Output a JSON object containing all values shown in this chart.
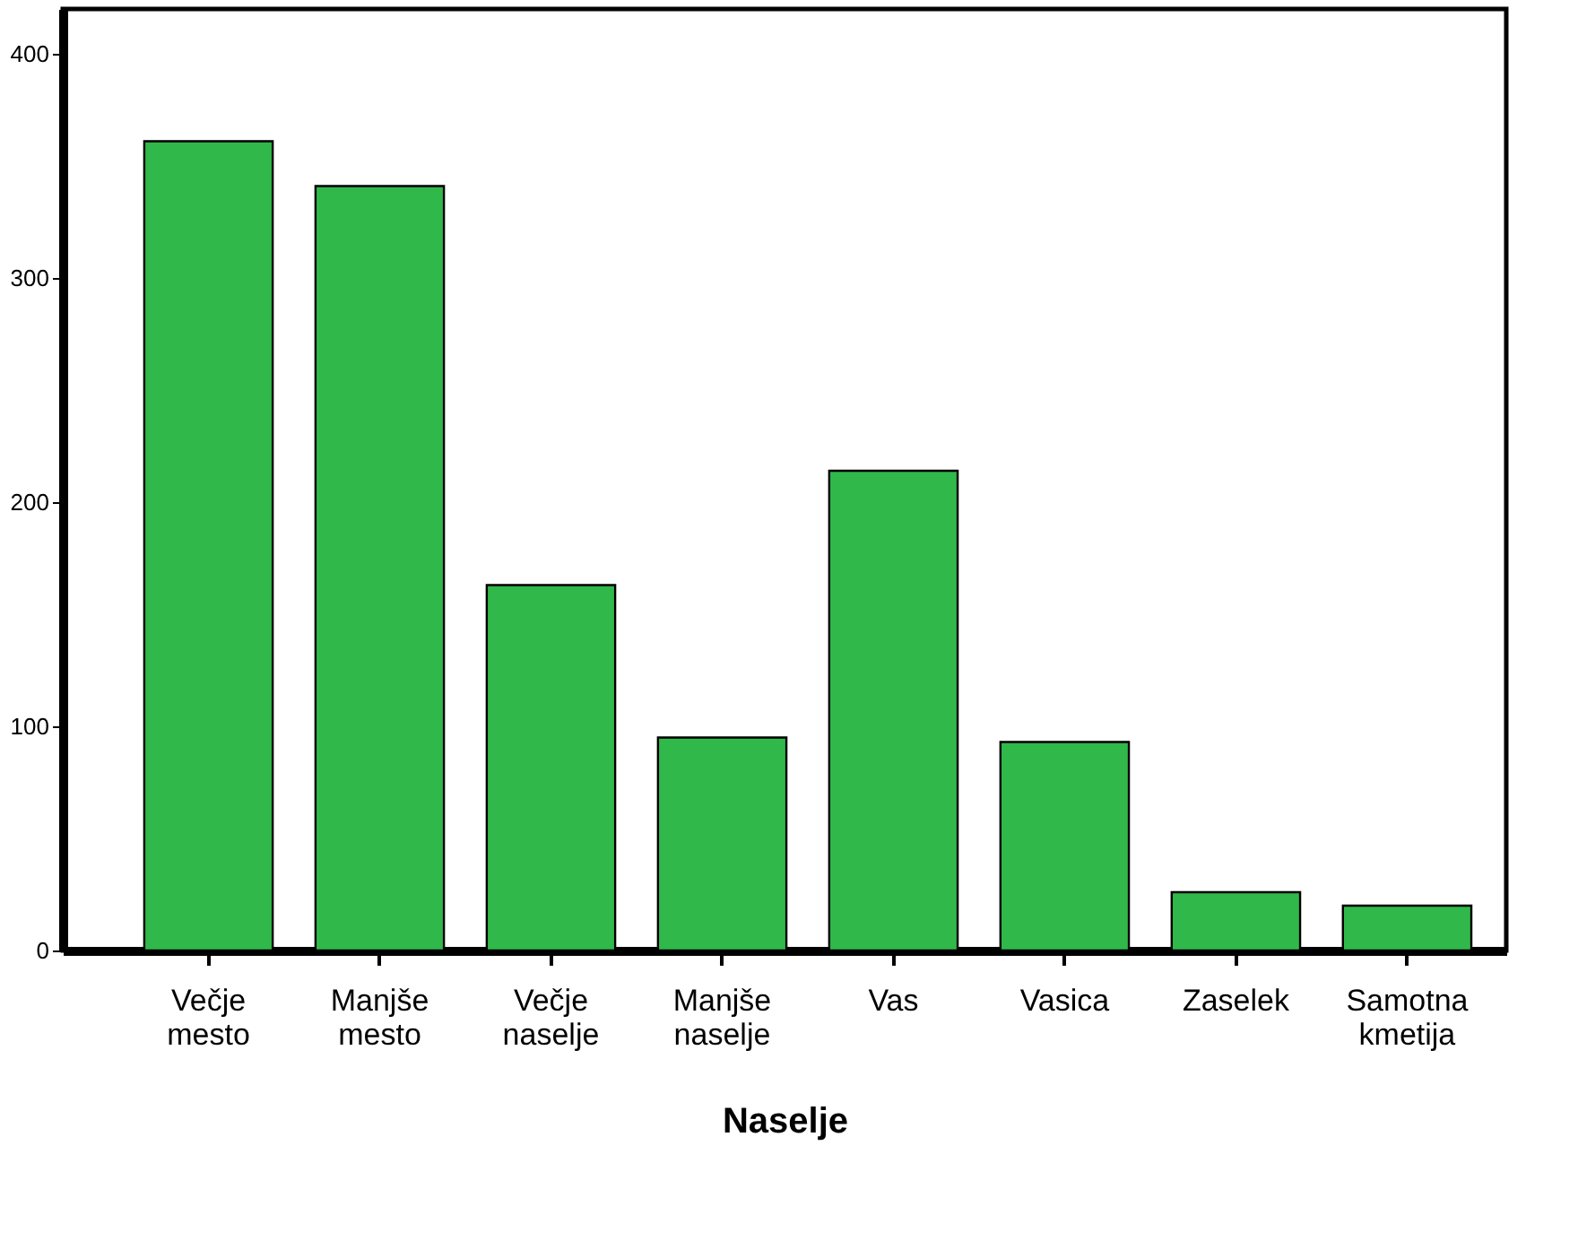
{
  "chart_data": {
    "type": "bar",
    "xlabel": "Naselje",
    "categories": [
      "Večje mesto",
      "Manjše mesto",
      "Večje naselje",
      "Manjše naselje",
      "Vas",
      "Vasica",
      "Zaselek",
      "Samotna kmetija"
    ],
    "values": [
      361,
      341,
      163,
      95,
      214,
      93,
      26,
      20
    ],
    "color": "#31b84a",
    "ylim": [
      0,
      420
    ],
    "yticks": [
      0,
      100,
      200,
      300,
      400
    ],
    "grid": false
  }
}
